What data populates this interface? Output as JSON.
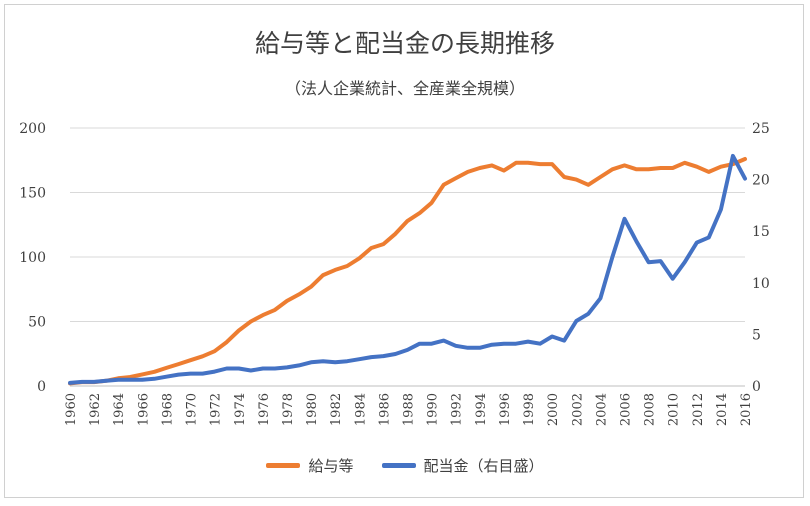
{
  "chart_data": {
    "type": "line",
    "title": "給与等と配当金の長期推移",
    "subtitle": "（法人企業統計、全産業全規模）",
    "x": [
      1960,
      1961,
      1962,
      1963,
      1964,
      1965,
      1966,
      1967,
      1968,
      1969,
      1970,
      1971,
      1972,
      1973,
      1974,
      1975,
      1976,
      1977,
      1978,
      1979,
      1980,
      1981,
      1982,
      1983,
      1984,
      1985,
      1986,
      1987,
      1988,
      1989,
      1990,
      1991,
      1992,
      1993,
      1994,
      1995,
      1996,
      1997,
      1998,
      1999,
      2000,
      2001,
      2002,
      2003,
      2004,
      2005,
      2006,
      2007,
      2008,
      2009,
      2010,
      2011,
      2012,
      2013,
      2014,
      2015,
      2016
    ],
    "x_tick_labels": [
      "1960",
      "1962",
      "1964",
      "1966",
      "1968",
      "1970",
      "1972",
      "1974",
      "1976",
      "1978",
      "1980",
      "1982",
      "1984",
      "1986",
      "1988",
      "1990",
      "1992",
      "1994",
      "1996",
      "1998",
      "2000",
      "2002",
      "2004",
      "2006",
      "2008",
      "2010",
      "2012",
      "2014",
      "2016"
    ],
    "y_left": {
      "range": [
        0,
        200
      ],
      "ticks": [
        "0",
        "50",
        "100",
        "150",
        "200"
      ]
    },
    "y_right": {
      "range": [
        0,
        25
      ],
      "ticks": [
        "0",
        "5",
        "10",
        "15",
        "20",
        "25"
      ]
    },
    "series": [
      {
        "name": "給与等",
        "axis": "left",
        "color": "#ED7D31",
        "values": [
          2,
          3,
          3,
          4,
          6,
          7,
          9,
          11,
          14,
          17,
          20,
          23,
          27,
          34,
          43,
          50,
          55,
          59,
          66,
          71,
          77,
          86,
          90,
          93,
          99,
          107,
          110,
          118,
          128,
          134,
          142,
          156,
          161,
          166,
          169,
          171,
          167,
          173,
          173,
          172,
          172,
          162,
          160,
          156,
          162,
          168,
          171,
          168,
          168,
          169,
          169,
          173,
          170,
          166,
          170,
          172,
          176
        ]
      },
      {
        "name": "配当金（右目盛）",
        "axis": "right",
        "color": "#4472C4",
        "values": [
          0.3,
          0.4,
          0.4,
          0.5,
          0.6,
          0.6,
          0.6,
          0.7,
          0.9,
          1.1,
          1.2,
          1.2,
          1.4,
          1.7,
          1.7,
          1.5,
          1.7,
          1.7,
          1.8,
          2.0,
          2.3,
          2.4,
          2.3,
          2.4,
          2.6,
          2.8,
          2.9,
          3.1,
          3.5,
          4.1,
          4.1,
          4.4,
          3.9,
          3.7,
          3.7,
          4.0,
          4.1,
          4.1,
          4.3,
          4.1,
          4.8,
          4.4,
          6.3,
          7.0,
          8.5,
          12.5,
          16.2,
          14.0,
          12.0,
          12.1,
          10.4,
          12.0,
          13.9,
          14.4,
          17.1,
          22.3,
          20.1
        ]
      }
    ],
    "legend": [
      "給与等",
      "配当金（右目盛）"
    ]
  }
}
